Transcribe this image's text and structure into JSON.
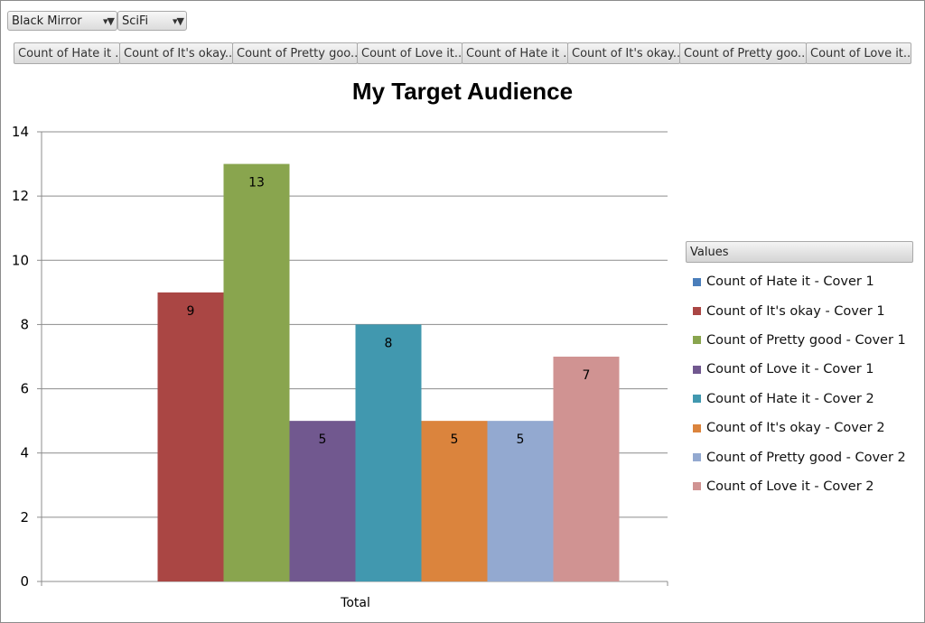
{
  "filters": [
    {
      "label": "Black Mirror",
      "icon": "filter-dropdown-icon"
    },
    {
      "label": "SciFi",
      "icon": "filter-dropdown-icon"
    }
  ],
  "field_buttons": [
    "Count of Hate it ...",
    "Count of It's okay...",
    "Count of Pretty goo...",
    "Count of Love it...",
    "Count of Hate it ...",
    "Count of It's okay...",
    "Count of Pretty goo...",
    "Count of Love it..."
  ],
  "legend_header": "Values",
  "chart_data": {
    "type": "bar",
    "title": "My Target Audience",
    "categories": [
      "Total"
    ],
    "xlabel": "",
    "ylabel": "",
    "ylim": [
      0,
      14
    ],
    "yticks": [
      0,
      2,
      4,
      6,
      8,
      10,
      12,
      14
    ],
    "grid": true,
    "legend_position": "right",
    "series": [
      {
        "name": "Count of Hate it - Cover 1",
        "values": [
          0
        ],
        "color": "#4a7ebb",
        "label": ""
      },
      {
        "name": "Count of It's okay - Cover 1",
        "values": [
          9
        ],
        "color": "#aa4644",
        "label": "9"
      },
      {
        "name": "Count of Pretty good - Cover 1",
        "values": [
          13
        ],
        "color": "#89a54e",
        "label": "13"
      },
      {
        "name": "Count of Love it - Cover 1",
        "values": [
          5
        ],
        "color": "#71588f",
        "label": "5"
      },
      {
        "name": "Count of Hate it - Cover 2",
        "values": [
          8
        ],
        "color": "#4198af",
        "label": "8"
      },
      {
        "name": "Count of It's okay - Cover 2",
        "values": [
          5
        ],
        "color": "#db843d",
        "label": "5"
      },
      {
        "name": "Count of Pretty good - Cover 2",
        "values": [
          5
        ],
        "color": "#93a9d0",
        "label": "5"
      },
      {
        "name": "Count of Love it - Cover 2",
        "values": [
          7
        ],
        "color": "#d09392",
        "label": "7"
      }
    ]
  }
}
